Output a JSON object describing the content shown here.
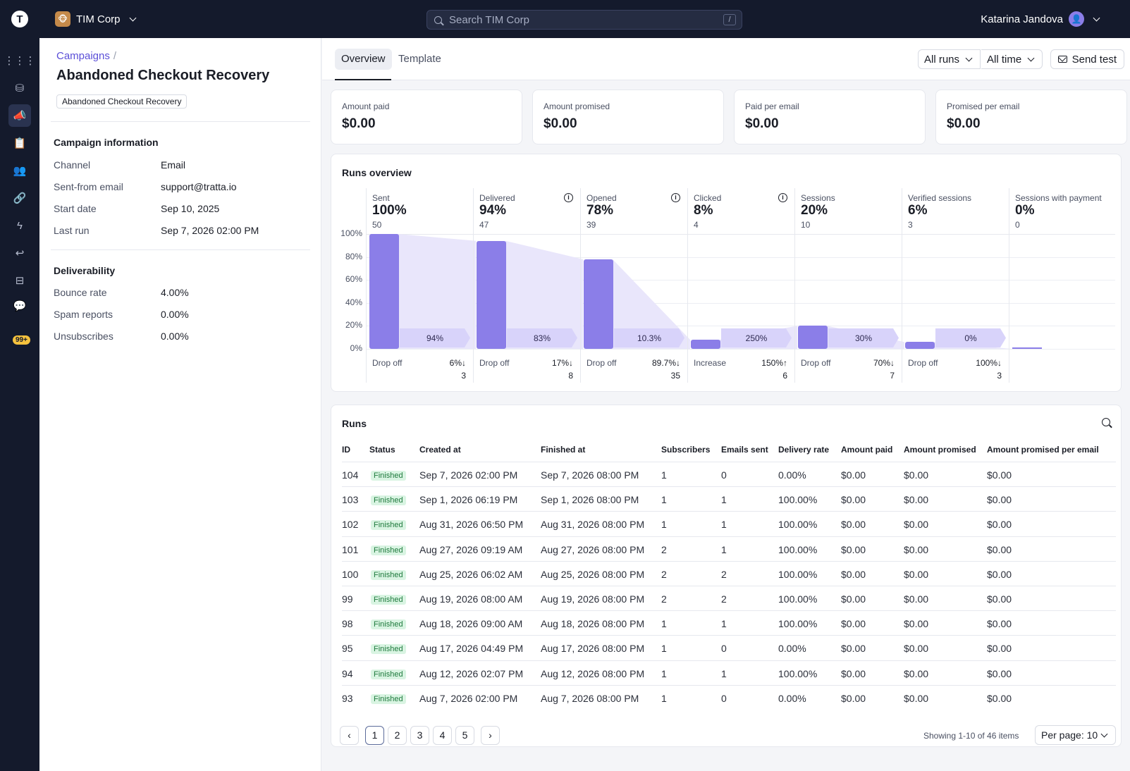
{
  "topbar": {
    "logo_letter": "T",
    "org_name": "TIM Corp",
    "search_placeholder": "Search TIM Corp",
    "search_shortcut": "/",
    "user_name": "Katarina Jandova"
  },
  "nav": {
    "badge": "99+",
    "icons": [
      "grid-icon",
      "coins-icon",
      "megaphone-icon",
      "clipboard-icon",
      "users-icon",
      "link-icon",
      "lightning-icon",
      "reply-icon",
      "inbox-icon",
      "chat-icon"
    ]
  },
  "side": {
    "breadcrumb": "Campaigns",
    "breadcrumb_sep": "/",
    "title": "Abandoned Checkout Recovery",
    "tag": "Abandoned Checkout Recovery",
    "campaign_info_heading": "Campaign information",
    "campaign_info": [
      {
        "k": "Channel",
        "v": "Email"
      },
      {
        "k": "Sent-from email",
        "v": "support@tratta.io"
      },
      {
        "k": "Start date",
        "v": "Sep 10, 2025"
      },
      {
        "k": "Last run",
        "v": "Sep 7, 2026 02:00 PM"
      }
    ],
    "deliverability_heading": "Deliverability",
    "deliverability": [
      {
        "k": "Bounce rate",
        "v": "4.00%"
      },
      {
        "k": "Spam reports",
        "v": "0.00%"
      },
      {
        "k": "Unsubscribes",
        "v": "0.00%"
      }
    ]
  },
  "tabs": {
    "overview": "Overview",
    "template": "Template"
  },
  "filters": {
    "runs": "All runs",
    "time": "All time",
    "send_test": "Send test"
  },
  "kpis": [
    {
      "label": "Amount paid",
      "value": "$0.00"
    },
    {
      "label": "Amount promised",
      "value": "$0.00"
    },
    {
      "label": "Paid per email",
      "value": "$0.00"
    },
    {
      "label": "Promised per email",
      "value": "$0.00"
    }
  ],
  "runs_overview": {
    "title": "Runs overview",
    "y_ticks": [
      "100%",
      "80%",
      "60%",
      "40%",
      "20%",
      "0%"
    ]
  },
  "chart_data": {
    "type": "bar",
    "title": "Runs overview",
    "ylim": [
      0,
      100
    ],
    "y_unit": "%",
    "categories": [
      "Sent",
      "Delivered",
      "Opened",
      "Clicked",
      "Sessions",
      "Verified sessions",
      "Sessions with payment"
    ],
    "values": [
      100,
      94,
      78,
      8,
      20,
      6,
      0
    ],
    "pct_labels": [
      "100%",
      "94%",
      "78%",
      "8%",
      "20%",
      "6%",
      "0%"
    ],
    "counts": [
      "50",
      "47",
      "39",
      "4",
      "10",
      "3",
      "0"
    ],
    "info": [
      false,
      true,
      true,
      true,
      false,
      false,
      false
    ],
    "conversions": [
      "94%",
      "83%",
      "10.3%",
      "250%",
      "30%",
      "0%"
    ],
    "changes": [
      {
        "label": "Drop off",
        "value": "6%↓",
        "count": "3"
      },
      {
        "label": "Drop off",
        "value": "17%↓",
        "count": "8"
      },
      {
        "label": "Drop off",
        "value": "89.7%↓",
        "count": "35"
      },
      {
        "label": "Increase",
        "value": "150%↑",
        "count": "6"
      },
      {
        "label": "Drop off",
        "value": "70%↓",
        "count": "7"
      },
      {
        "label": "Drop off",
        "value": "100%↓",
        "count": "3"
      }
    ],
    "colors": {
      "bar": "#8b7ee8",
      "area": "#e9e6fb",
      "label": "#d8d3fa"
    }
  },
  "runs": {
    "title": "Runs",
    "headers": [
      "ID",
      "Status",
      "Created at",
      "Finished at",
      "Subscribers",
      "Emails sent",
      "Delivery rate",
      "Amount paid",
      "Amount promised",
      "Amount promised per email"
    ],
    "rows": [
      [
        "104",
        "Finished",
        "Sep 7, 2026 02:00 PM",
        "Sep 7, 2026 08:00 PM",
        "1",
        "0",
        "0.00%",
        "$0.00",
        "$0.00",
        "$0.00"
      ],
      [
        "103",
        "Finished",
        "Sep 1, 2026 06:19 PM",
        "Sep 1, 2026 08:00 PM",
        "1",
        "1",
        "100.00%",
        "$0.00",
        "$0.00",
        "$0.00"
      ],
      [
        "102",
        "Finished",
        "Aug 31, 2026 06:50 PM",
        "Aug 31, 2026 08:00 PM",
        "1",
        "1",
        "100.00%",
        "$0.00",
        "$0.00",
        "$0.00"
      ],
      [
        "101",
        "Finished",
        "Aug 27, 2026 09:19 AM",
        "Aug 27, 2026 08:00 PM",
        "2",
        "1",
        "100.00%",
        "$0.00",
        "$0.00",
        "$0.00"
      ],
      [
        "100",
        "Finished",
        "Aug 25, 2026 06:02 AM",
        "Aug 25, 2026 08:00 PM",
        "2",
        "2",
        "100.00%",
        "$0.00",
        "$0.00",
        "$0.00"
      ],
      [
        "99",
        "Finished",
        "Aug 19, 2026 08:00 AM",
        "Aug 19, 2026 08:00 PM",
        "2",
        "2",
        "100.00%",
        "$0.00",
        "$0.00",
        "$0.00"
      ],
      [
        "98",
        "Finished",
        "Aug 18, 2026 09:00 AM",
        "Aug 18, 2026 08:00 PM",
        "1",
        "1",
        "100.00%",
        "$0.00",
        "$0.00",
        "$0.00"
      ],
      [
        "95",
        "Finished",
        "Aug 17, 2026 04:49 PM",
        "Aug 17, 2026 08:00 PM",
        "1",
        "0",
        "0.00%",
        "$0.00",
        "$0.00",
        "$0.00"
      ],
      [
        "94",
        "Finished",
        "Aug 12, 2026 02:07 PM",
        "Aug 12, 2026 08:00 PM",
        "1",
        "1",
        "100.00%",
        "$0.00",
        "$0.00",
        "$0.00"
      ],
      [
        "93",
        "Finished",
        "Aug 7, 2026 02:00 PM",
        "Aug 7, 2026 08:00 PM",
        "1",
        "0",
        "0.00%",
        "$0.00",
        "$0.00",
        "$0.00"
      ]
    ],
    "pages": [
      "1",
      "2",
      "3",
      "4",
      "5"
    ],
    "current_page": "1",
    "showing": "Showing 1-10 of 46 items",
    "per_page": "Per page: 10"
  }
}
